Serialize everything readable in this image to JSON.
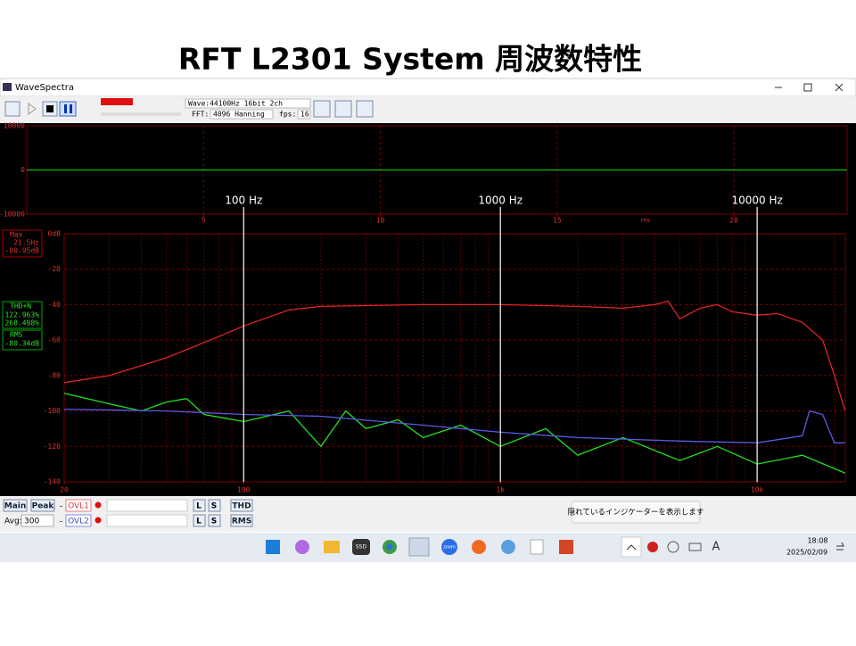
{
  "slide_title": "RFT L2301 System 周波数特性",
  "window": {
    "title": "WaveSpectra"
  },
  "toolbar": {
    "wave": "Wave:44100Hz 16bit 2ch",
    "fft_label": "FFT:",
    "fft": "4096 Hanning",
    "fps_label": "fps:",
    "fps": "16"
  },
  "chart_data": [
    {
      "type": "line",
      "ylim": [
        -10000,
        10000
      ],
      "yticks": [
        10000,
        0,
        -10000
      ],
      "xlim": [
        0,
        23.2
      ],
      "xticks": [
        5,
        10,
        15,
        20
      ],
      "x_unit": "ms",
      "grid": true,
      "series": [
        {
          "color": "#10c010",
          "x": [
            0,
            23.2
          ],
          "values": [
            0,
            0
          ]
        }
      ]
    },
    {
      "type": "line",
      "xscale": "log",
      "xlim": [
        20,
        22050
      ],
      "ylim": [
        -140,
        0
      ],
      "xticks": [
        20,
        100,
        {
          "value": 1000,
          "label": "1k"
        },
        {
          "value": 10000,
          "label": "10k"
        }
      ],
      "yticks": [
        {
          "value": 0,
          "label": "0dB"
        },
        -20,
        -40,
        -60,
        -80,
        -100,
        -120,
        -140
      ],
      "grid": true,
      "annotations": [
        {
          "text": "100 Hz",
          "x": 100
        },
        {
          "text": "1000 Hz",
          "x": 1000
        },
        {
          "text": "10000 Hz",
          "x": 10000
        }
      ],
      "series": [
        {
          "color": "#e02424",
          "x": [
            20,
            30,
            50,
            80,
            100,
            150,
            200,
            500,
            1000,
            2000,
            3000,
            4000,
            4500,
            5000,
            6000,
            7000,
            8000,
            10000,
            12000,
            15000,
            18000,
            20000,
            22000
          ],
          "values": [
            -84,
            -80,
            -70,
            -58,
            -52,
            -43,
            -41,
            -40,
            -40,
            -41,
            -42,
            -40,
            -38,
            -48,
            -42,
            -40,
            -44,
            -46,
            -45,
            -50,
            -60,
            -80,
            -100
          ]
        },
        {
          "color": "#22e022",
          "x": [
            20,
            30,
            40,
            50,
            60,
            70,
            100,
            150,
            200,
            250,
            300,
            400,
            500,
            700,
            1000,
            1500,
            2000,
            3000,
            5000,
            7000,
            10000,
            15000,
            22000
          ],
          "values": [
            -90,
            -96,
            -100,
            -95,
            -93,
            -102,
            -106,
            -100,
            -120,
            -100,
            -110,
            -105,
            -115,
            -108,
            -120,
            -110,
            -125,
            -115,
            -128,
            -120,
            -130,
            -125,
            -135
          ]
        },
        {
          "color": "#5a5ae6",
          "x": [
            20,
            50,
            100,
            200,
            500,
            1000,
            2000,
            5000,
            10000,
            15000,
            16000,
            18000,
            20000,
            22000
          ],
          "values": [
            -99,
            -100,
            -102,
            -103,
            -108,
            -112,
            -115,
            -117,
            -118,
            -114,
            -100,
            -102,
            -118,
            -118
          ]
        }
      ]
    }
  ],
  "readouts": {
    "max_label": "Max",
    "max_freq": "21.5Hz",
    "max_level": "-80.95dB",
    "thd_label": "THD+N",
    "thd_l": "122.963%",
    "thd_r": "268.498%",
    "rms_label": "RMS",
    "rms_level": "-80.34dB"
  },
  "controls": {
    "main": "Main",
    "peak": "Peak",
    "ovl1": "OVL1",
    "l1": "L",
    "s1": "S",
    "thd": "THD",
    "avg_label": "Avg:",
    "avg": "300",
    "ovl2": "OVL2",
    "l2": "L",
    "s2": "S",
    "rms": "RMS"
  },
  "tooltip": "隠れているインジケーターを表示します",
  "taskbar": {
    "ssd": "SSD",
    "zoom": "zoom",
    "ime": "A",
    "time": "18:08",
    "date": "2025/02/09"
  }
}
